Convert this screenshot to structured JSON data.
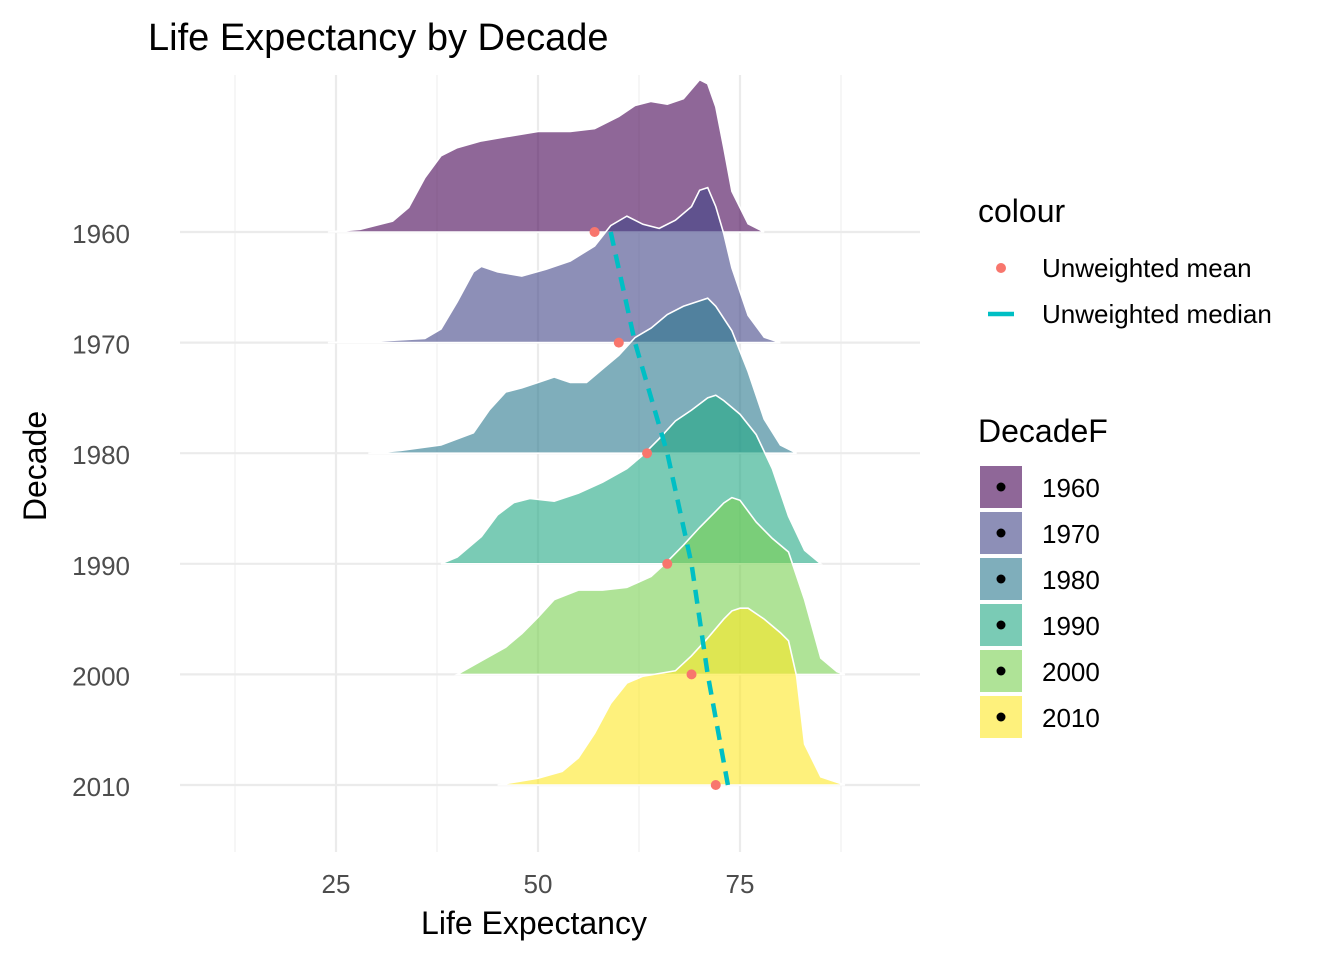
{
  "chart_data": {
    "type": "ridgeline",
    "title": "Life Expectancy by Decade",
    "xlabel": "Life Expectancy",
    "ylabel": "Decade",
    "x_ticks": [
      25,
      50,
      75
    ],
    "x_range": [
      12.5,
      90
    ],
    "grid": true,
    "legend_placement": "right",
    "categories": [
      "1960",
      "1970",
      "1980",
      "1990",
      "2000",
      "2010"
    ],
    "legend_colour": {
      "title": "colour",
      "entries": [
        {
          "label": "Unweighted mean",
          "color": "#F8766D",
          "shape": "point"
        },
        {
          "label": "Unweighted median",
          "color": "#00BFC4",
          "shape": "dash"
        }
      ]
    },
    "legend_fill": {
      "title": "DecadeF",
      "entries": [
        {
          "label": "1960",
          "color": "#440154"
        },
        {
          "label": "1970",
          "color": "#414487"
        },
        {
          "label": "1980",
          "color": "#2A788E"
        },
        {
          "label": "1990",
          "color": "#22A884"
        },
        {
          "label": "2000",
          "color": "#7AD151"
        },
        {
          "label": "2010",
          "color": "#FDE725"
        }
      ]
    },
    "series": [
      {
        "decade": "1960",
        "color": "#440154",
        "mean": 57,
        "median": 59,
        "density": [
          [
            24,
            0
          ],
          [
            28,
            0.02
          ],
          [
            32,
            0.08
          ],
          [
            34,
            0.18
          ],
          [
            36,
            0.4
          ],
          [
            38,
            0.56
          ],
          [
            40,
            0.62
          ],
          [
            43,
            0.67
          ],
          [
            47,
            0.71
          ],
          [
            50,
            0.74
          ],
          [
            54,
            0.74
          ],
          [
            57,
            0.76
          ],
          [
            60,
            0.85
          ],
          [
            62,
            0.93
          ],
          [
            64,
            0.96
          ],
          [
            66,
            0.94
          ],
          [
            68,
            0.98
          ],
          [
            70,
            1.12
          ],
          [
            71,
            1.09
          ],
          [
            72,
            0.92
          ],
          [
            73,
            0.62
          ],
          [
            74,
            0.3
          ],
          [
            76,
            0.06
          ],
          [
            78,
            0
          ]
        ]
      },
      {
        "decade": "1970",
        "color": "#414487",
        "mean": 60,
        "median": 62,
        "density": [
          [
            24,
            0
          ],
          [
            30,
            0.01
          ],
          [
            36,
            0.03
          ],
          [
            38,
            0.1
          ],
          [
            40,
            0.3
          ],
          [
            42,
            0.52
          ],
          [
            43,
            0.56
          ],
          [
            45,
            0.52
          ],
          [
            48,
            0.49
          ],
          [
            51,
            0.54
          ],
          [
            54,
            0.6
          ],
          [
            57,
            0.71
          ],
          [
            59,
            0.86
          ],
          [
            61,
            0.93
          ],
          [
            63,
            0.87
          ],
          [
            65,
            0.84
          ],
          [
            67,
            0.9
          ],
          [
            69,
            1.0
          ],
          [
            70,
            1.12
          ],
          [
            71,
            1.14
          ],
          [
            72,
            1.0
          ],
          [
            73,
            0.8
          ],
          [
            74,
            0.55
          ],
          [
            76,
            0.2
          ],
          [
            78,
            0.04
          ],
          [
            80,
            0
          ]
        ]
      },
      {
        "decade": "1980",
        "color": "#2A788E",
        "mean": 63.5,
        "median": 66,
        "density": [
          [
            29,
            0
          ],
          [
            33,
            0.02
          ],
          [
            38,
            0.06
          ],
          [
            42,
            0.15
          ],
          [
            44,
            0.32
          ],
          [
            46,
            0.45
          ],
          [
            48,
            0.48
          ],
          [
            50,
            0.52
          ],
          [
            52,
            0.56
          ],
          [
            54,
            0.52
          ],
          [
            56,
            0.52
          ],
          [
            58,
            0.62
          ],
          [
            60,
            0.72
          ],
          [
            62,
            0.85
          ],
          [
            64,
            0.92
          ],
          [
            66,
            1.02
          ],
          [
            68,
            1.08
          ],
          [
            70,
            1.12
          ],
          [
            71,
            1.14
          ],
          [
            72,
            1.08
          ],
          [
            74,
            0.9
          ],
          [
            76,
            0.6
          ],
          [
            78,
            0.25
          ],
          [
            80,
            0.06
          ],
          [
            82,
            0
          ]
        ]
      },
      {
        "decade": "1990",
        "color": "#22A884",
        "mean": 66,
        "median": 69,
        "density": [
          [
            38,
            0
          ],
          [
            40,
            0.05
          ],
          [
            43,
            0.2
          ],
          [
            45,
            0.36
          ],
          [
            47,
            0.45
          ],
          [
            49,
            0.48
          ],
          [
            52,
            0.46
          ],
          [
            55,
            0.52
          ],
          [
            58,
            0.6
          ],
          [
            61,
            0.7
          ],
          [
            63,
            0.8
          ],
          [
            65,
            0.92
          ],
          [
            67,
            1.05
          ],
          [
            69,
            1.13
          ],
          [
            71,
            1.22
          ],
          [
            72,
            1.24
          ],
          [
            73,
            1.2
          ],
          [
            75,
            1.1
          ],
          [
            77,
            0.95
          ],
          [
            79,
            0.7
          ],
          [
            81,
            0.35
          ],
          [
            83,
            0.1
          ],
          [
            85,
            0
          ]
        ]
      },
      {
        "decade": "2000",
        "color": "#7AD151",
        "mean": 69,
        "median": 71,
        "density": [
          [
            40,
            0
          ],
          [
            43,
            0.1
          ],
          [
            46,
            0.2
          ],
          [
            48,
            0.3
          ],
          [
            50,
            0.42
          ],
          [
            52,
            0.55
          ],
          [
            55,
            0.62
          ],
          [
            58,
            0.62
          ],
          [
            61,
            0.64
          ],
          [
            64,
            0.72
          ],
          [
            66,
            0.83
          ],
          [
            68,
            0.95
          ],
          [
            70,
            1.08
          ],
          [
            72,
            1.2
          ],
          [
            73,
            1.26
          ],
          [
            74,
            1.3
          ],
          [
            75,
            1.28
          ],
          [
            77,
            1.12
          ],
          [
            79,
            1.0
          ],
          [
            81,
            0.9
          ],
          [
            83,
            0.55
          ],
          [
            85,
            0.12
          ],
          [
            87,
            0.02
          ],
          [
            88,
            0
          ]
        ]
      },
      {
        "decade": "2010",
        "color": "#FDE725",
        "mean": 72,
        "median": 73.5,
        "density": [
          [
            45,
            0
          ],
          [
            50,
            0.05
          ],
          [
            53,
            0.1
          ],
          [
            55,
            0.2
          ],
          [
            57,
            0.38
          ],
          [
            59,
            0.6
          ],
          [
            61,
            0.75
          ],
          [
            63,
            0.8
          ],
          [
            65,
            0.82
          ],
          [
            67,
            0.84
          ],
          [
            69,
            0.95
          ],
          [
            71,
            1.08
          ],
          [
            73,
            1.22
          ],
          [
            74,
            1.28
          ],
          [
            75,
            1.3
          ],
          [
            76,
            1.3
          ],
          [
            78,
            1.22
          ],
          [
            80,
            1.12
          ],
          [
            81,
            1.06
          ],
          [
            82,
            0.8
          ],
          [
            83,
            0.3
          ],
          [
            85,
            0.06
          ],
          [
            88,
            0
          ]
        ]
      }
    ]
  }
}
